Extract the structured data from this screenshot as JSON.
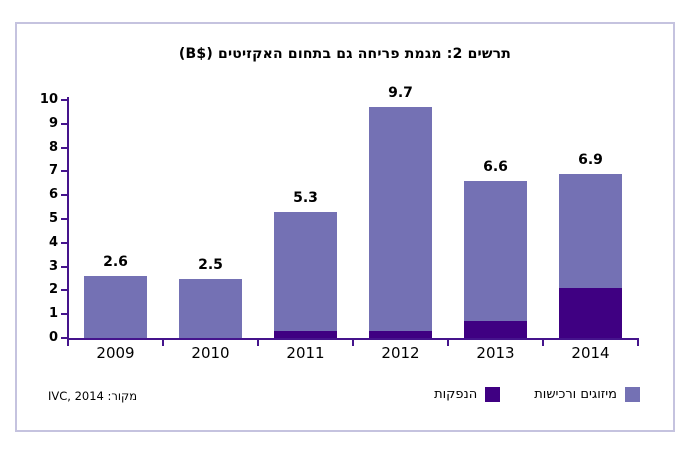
{
  "chart_data": {
    "type": "bar",
    "stacked": true,
    "title": "תרשים 2: מגמת פריחה גם בתחום האקזיטים ($B)",
    "categories": [
      "2009",
      "2010",
      "2011",
      "2012",
      "2013",
      "2014"
    ],
    "series": [
      {
        "name": "הנפקות",
        "key": "ipos",
        "color": "#3f0082",
        "values": [
          0,
          0,
          0.3,
          0.3,
          0.7,
          2.1
        ]
      },
      {
        "name": "מיזוגים ורכישות",
        "key": "mergers-acquisitions",
        "color": "#7471b4",
        "values": [
          2.6,
          2.5,
          5.0,
          9.4,
          5.9,
          4.8
        ]
      }
    ],
    "totals": [
      2.6,
      2.5,
      5.3,
      9.7,
      6.6,
      6.9
    ],
    "total_labels": [
      "2.6",
      "2.5",
      "5.3",
      "9.7",
      "6.6",
      "6.9"
    ],
    "ylim": [
      0,
      10
    ],
    "yticks": [
      0,
      1,
      2,
      3,
      4,
      5,
      6,
      7,
      8,
      9,
      10
    ],
    "grid": false,
    "legend_position": "bottom-right",
    "legend": [
      {
        "label": "מיזוגים ורכישות",
        "color": "#7471b4"
      },
      {
        "label": "הנפקות",
        "color": "#3f0082"
      }
    ],
    "source": "מקור: IVC, 2014",
    "axis_color": "#45148c",
    "frame_color": "#c5c3df"
  }
}
